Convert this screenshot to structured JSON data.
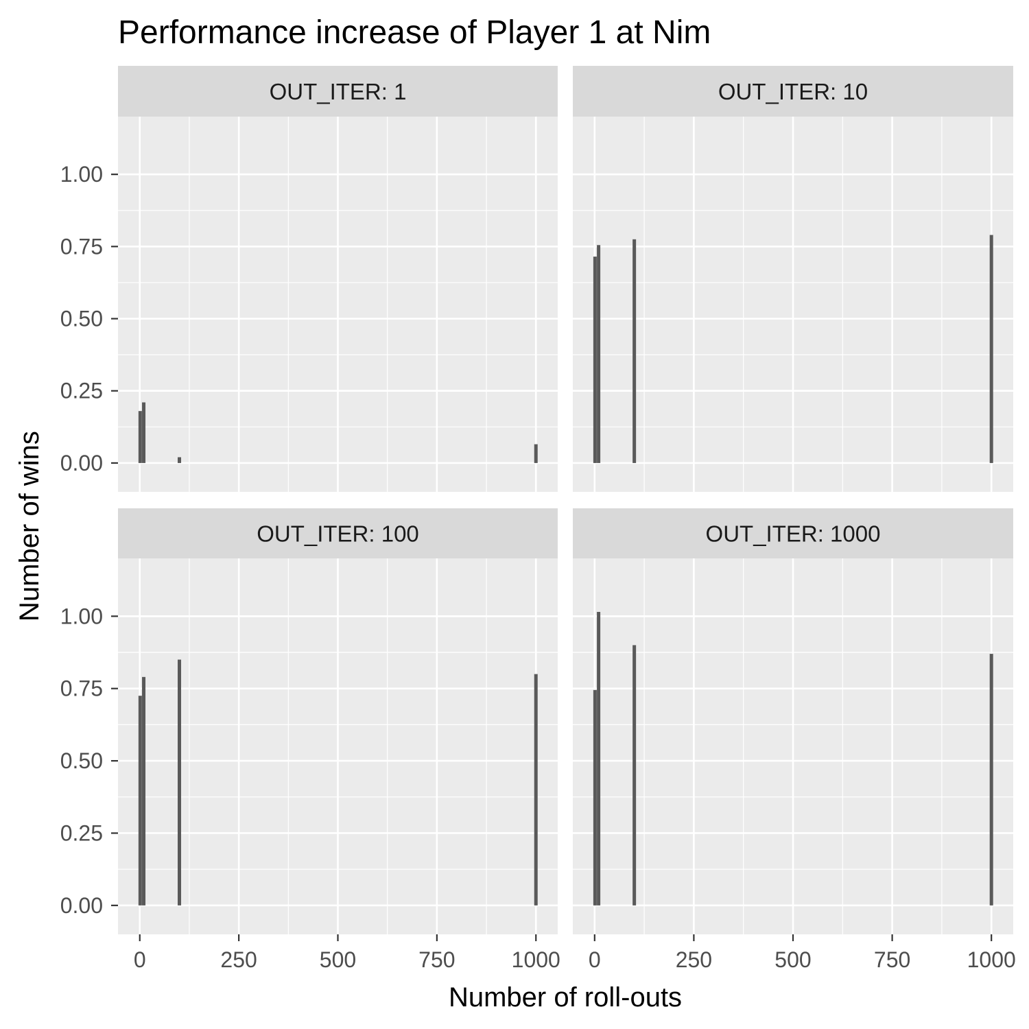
{
  "chart_data": {
    "type": "bar",
    "title": "Performance increase of Player 1 at Nim",
    "xlabel": "Number of roll-outs",
    "ylabel": "Number of wins",
    "xlim": [
      -55,
      1055
    ],
    "ylim": [
      -0.1,
      1.2
    ],
    "x_ticks": [
      0,
      250,
      500,
      750,
      1000
    ],
    "x_tick_labels": [
      "0",
      "250",
      "500",
      "750",
      "1000"
    ],
    "y_ticks": [
      0,
      0.25,
      0.5,
      0.75,
      1
    ],
    "y_tick_labels": [
      "0.00",
      "0.25",
      "0.50",
      "0.75",
      "1.00"
    ],
    "grid": true,
    "layout": "2x2 facets",
    "colors": {
      "panel_background": "#ebebeb",
      "strip_background": "#d9d9d9",
      "grid": "#ffffff",
      "bar": "#595959"
    },
    "facets": [
      {
        "label": "OUT_ITER: 1",
        "x": [
          1,
          10,
          100,
          1000
        ],
        "values": [
          0.18,
          0.21,
          0.02,
          0.065
        ]
      },
      {
        "label": "OUT_ITER: 10",
        "x": [
          1,
          10,
          100,
          1000
        ],
        "values": [
          0.715,
          0.755,
          0.775,
          0.79
        ]
      },
      {
        "label": "OUT_ITER: 100",
        "x": [
          1,
          10,
          100,
          1000
        ],
        "values": [
          0.725,
          0.79,
          0.85,
          0.8
        ]
      },
      {
        "label": "OUT_ITER: 1000",
        "x": [
          1,
          10,
          100,
          1000
        ],
        "values": [
          0.745,
          1.015,
          0.9,
          0.87
        ]
      }
    ]
  }
}
